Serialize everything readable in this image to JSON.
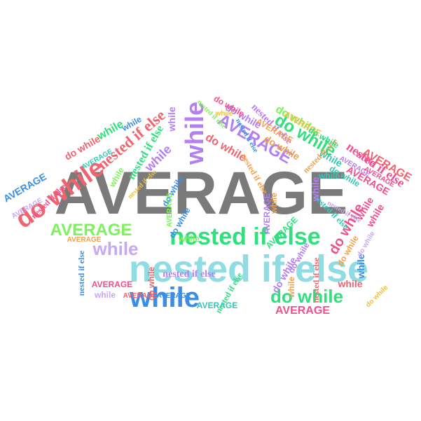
{
  "colors": {
    "gray": "#7a7a7a",
    "cyan": "#8fdce3",
    "green": "#2fe07d",
    "lime": "#7cf35a",
    "red": "#f06470",
    "pink": "#f0508c",
    "purple": "#b47ff0",
    "blue": "#3a8ee8",
    "orange": "#f5a04a",
    "yellow": "#f0c040",
    "teal": "#35c8b4",
    "lavender": "#c8a8f0"
  },
  "words": {
    "average": "AVERAGE",
    "nested": "nested if else",
    "while": "while",
    "dowhile": "do while"
  },
  "cloud": [
    {
      "word": "average",
      "color": "gray",
      "style": "sans"
    },
    {
      "word": "nested",
      "color": "cyan",
      "style": "sans"
    },
    {
      "word": "nested",
      "color": "green",
      "style": "sans"
    },
    {
      "word": "while",
      "color": "blue",
      "style": "sans"
    },
    {
      "word": "dowhile",
      "color": "green",
      "style": "sans"
    },
    {
      "word": "dowhile",
      "color": "red",
      "style": "sans"
    },
    {
      "word": "average",
      "color": "lime",
      "style": "sans"
    },
    {
      "word": "while",
      "color": "lavender",
      "style": "sans"
    },
    {
      "word": "average",
      "color": "pink",
      "style": "sans"
    },
    {
      "word": "while",
      "color": "purple",
      "style": "sans"
    },
    {
      "word": "average",
      "color": "purple",
      "style": "sans"
    },
    {
      "word": "nested",
      "color": "red",
      "style": "serif"
    },
    {
      "word": "nested",
      "color": "green",
      "style": "serif"
    },
    {
      "word": "nested",
      "color": "pink",
      "style": "serif"
    },
    {
      "word": "dowhile",
      "color": "green",
      "style": "sans"
    },
    {
      "word": "dowhile",
      "color": "red",
      "style": "sans"
    },
    {
      "word": "while",
      "color": "purple",
      "style": "sans"
    },
    {
      "word": "average",
      "color": "red",
      "style": "sans"
    },
    {
      "word": "average",
      "color": "pink",
      "style": "sans"
    },
    {
      "word": "while",
      "color": "green",
      "style": "sans"
    },
    {
      "word": "nested",
      "color": "purple",
      "style": "serif"
    },
    {
      "word": "dowhile",
      "color": "orange",
      "style": "sans"
    },
    {
      "word": "dowhile",
      "color": "pink",
      "style": "sans"
    },
    {
      "word": "average",
      "color": "orange",
      "style": "sans"
    },
    {
      "word": "while",
      "color": "purple",
      "style": "sans"
    },
    {
      "word": "dowhile",
      "color": "red",
      "style": "sans"
    },
    {
      "word": "while",
      "color": "teal",
      "style": "sans"
    },
    {
      "word": "nested",
      "color": "orange",
      "style": "serif"
    },
    {
      "word": "average",
      "color": "blue",
      "style": "sans"
    },
    {
      "word": "nested",
      "color": "pink",
      "style": "serif"
    },
    {
      "word": "while",
      "color": "orange",
      "style": "sans"
    },
    {
      "word": "dowhile",
      "color": "purple",
      "style": "sans"
    },
    {
      "word": "average",
      "color": "pink",
      "style": "sans"
    },
    {
      "word": "nested",
      "color": "purple",
      "style": "serif"
    },
    {
      "word": "while",
      "color": "red",
      "style": "sans"
    },
    {
      "word": "dowhile",
      "color": "blue",
      "style": "sans"
    },
    {
      "word": "average",
      "color": "green",
      "style": "sans"
    },
    {
      "word": "nested",
      "color": "teal",
      "style": "serif"
    },
    {
      "word": "while",
      "color": "pink",
      "style": "sans"
    },
    {
      "word": "dowhile",
      "color": "purple",
      "style": "sans"
    },
    {
      "word": "average",
      "color": "purple",
      "style": "sans"
    },
    {
      "word": "while",
      "color": "lime",
      "style": "sans"
    },
    {
      "word": "nested",
      "color": "blue",
      "style": "serif"
    },
    {
      "word": "dowhile",
      "color": "lime",
      "style": "sans"
    },
    {
      "word": "average",
      "color": "blue",
      "style": "sans"
    },
    {
      "word": "while",
      "color": "pink",
      "style": "sans"
    },
    {
      "word": "dowhile",
      "color": "teal",
      "style": "sans"
    },
    {
      "word": "nested",
      "color": "orange",
      "style": "serif"
    },
    {
      "word": "average",
      "color": "lavender",
      "style": "sans"
    },
    {
      "word": "while",
      "color": "blue",
      "style": "sans"
    },
    {
      "word": "dowhile",
      "color": "orange",
      "style": "sans"
    },
    {
      "word": "average",
      "color": "yellow",
      "style": "sans"
    },
    {
      "word": "while",
      "color": "purple",
      "style": "sans"
    },
    {
      "word": "nested",
      "color": "green",
      "style": "serif"
    },
    {
      "word": "dowhile",
      "color": "pink",
      "style": "sans"
    },
    {
      "word": "average",
      "color": "teal",
      "style": "sans"
    },
    {
      "word": "while",
      "color": "orange",
      "style": "sans"
    },
    {
      "word": "dowhile",
      "color": "blue",
      "style": "sans"
    },
    {
      "word": "nested",
      "color": "red",
      "style": "serif"
    },
    {
      "word": "average",
      "color": "red",
      "style": "sans"
    },
    {
      "word": "while",
      "color": "lavender",
      "style": "sans"
    },
    {
      "word": "dowhile",
      "color": "green",
      "style": "sans"
    },
    {
      "word": "average",
      "color": "purple",
      "style": "sans"
    },
    {
      "word": "nested",
      "color": "yellow",
      "style": "serif"
    },
    {
      "word": "while",
      "color": "teal",
      "style": "sans"
    },
    {
      "word": "dowhile",
      "color": "lavender",
      "style": "sans"
    },
    {
      "word": "average",
      "color": "orange",
      "style": "sans"
    },
    {
      "word": "while",
      "color": "pink",
      "style": "sans"
    },
    {
      "word": "dowhile",
      "color": "yellow",
      "style": "sans"
    },
    {
      "word": "nested",
      "color": "lime",
      "style": "serif"
    },
    {
      "word": "average",
      "color": "lime",
      "style": "sans"
    },
    {
      "word": "while",
      "color": "blue",
      "style": "sans"
    },
    {
      "word": "dowhile",
      "color": "purple",
      "style": "sans"
    },
    {
      "word": "average",
      "color": "pink",
      "style": "sans"
    },
    {
      "word": "nested",
      "color": "blue",
      "style": "serif"
    },
    {
      "word": "while",
      "color": "lime",
      "style": "sans"
    },
    {
      "word": "dowhile",
      "color": "red",
      "style": "sans"
    },
    {
      "word": "average",
      "color": "teal",
      "style": "sans"
    },
    {
      "word": "nested",
      "color": "lavender",
      "style": "serif"
    },
    {
      "word": "while",
      "color": "yellow",
      "style": "sans"
    }
  ]
}
